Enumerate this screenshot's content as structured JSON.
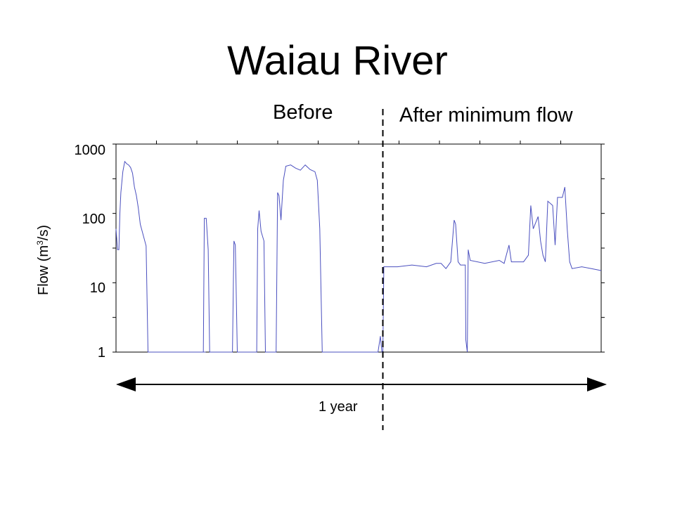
{
  "title": "Waiau River",
  "chart_data": {
    "type": "line",
    "title": "Waiau River",
    "ylabel_prefix": "Flow (m",
    "ylabel_sup": "3",
    "ylabel_suffix": "/s)",
    "yscale": "log",
    "ylim": [
      1,
      1000
    ],
    "yticks": [
      {
        "value": 1,
        "label": "1"
      },
      {
        "value": 10,
        "label": "10"
      },
      {
        "value": 100,
        "label": "100"
      },
      {
        "value": 1000,
        "label": "1000"
      }
    ],
    "x_span_label": "1 year",
    "period_labels": {
      "before": "Before",
      "after": "After minimum flow"
    },
    "xlim": [
      0,
      1
    ],
    "divider_x": 0.55,
    "grid": false,
    "series": [
      {
        "color": "#4a4fbf",
        "points": [
          [
            0.0,
            60
          ],
          [
            0.003,
            30
          ],
          [
            0.006,
            30
          ],
          [
            0.008,
            100
          ],
          [
            0.01,
            200
          ],
          [
            0.014,
            400
          ],
          [
            0.018,
            560
          ],
          [
            0.022,
            520
          ],
          [
            0.026,
            500
          ],
          [
            0.03,
            460
          ],
          [
            0.034,
            380
          ],
          [
            0.038,
            240
          ],
          [
            0.042,
            180
          ],
          [
            0.046,
            120
          ],
          [
            0.05,
            70
          ],
          [
            0.062,
            34
          ],
          [
            0.066,
            1
          ],
          [
            0.185,
            1
          ],
          [
            0.18,
            1
          ],
          [
            0.182,
            85
          ],
          [
            0.186,
            85
          ],
          [
            0.19,
            30
          ],
          [
            0.193,
            1
          ],
          [
            0.24,
            1
          ],
          [
            0.243,
            40
          ],
          [
            0.246,
            35
          ],
          [
            0.25,
            1
          ],
          [
            0.29,
            1
          ],
          [
            0.292,
            60
          ],
          [
            0.295,
            110
          ],
          [
            0.299,
            55
          ],
          [
            0.305,
            40
          ],
          [
            0.308,
            1
          ],
          [
            0.33,
            1
          ],
          [
            0.333,
            200
          ],
          [
            0.336,
            180
          ],
          [
            0.34,
            80
          ],
          [
            0.345,
            300
          ],
          [
            0.35,
            480
          ],
          [
            0.36,
            500
          ],
          [
            0.37,
            450
          ],
          [
            0.38,
            420
          ],
          [
            0.39,
            500
          ],
          [
            0.4,
            430
          ],
          [
            0.41,
            400
          ],
          [
            0.415,
            300
          ],
          [
            0.42,
            60
          ],
          [
            0.425,
            1
          ],
          [
            0.54,
            1
          ],
          [
            0.545,
            1.7
          ],
          [
            0.548,
            1
          ],
          [
            0.55,
            1
          ],
          [
            0.552,
            17
          ],
          [
            0.58,
            17
          ],
          [
            0.61,
            18
          ],
          [
            0.64,
            17
          ],
          [
            0.66,
            19
          ],
          [
            0.67,
            19
          ],
          [
            0.68,
            16
          ],
          [
            0.69,
            20
          ],
          [
            0.697,
            80
          ],
          [
            0.7,
            70
          ],
          [
            0.705,
            20
          ],
          [
            0.71,
            18
          ],
          [
            0.72,
            18
          ],
          [
            0.721,
            1.5
          ],
          [
            0.724,
            1
          ],
          [
            0.726,
            30
          ],
          [
            0.73,
            21
          ],
          [
            0.76,
            19
          ],
          [
            0.79,
            21
          ],
          [
            0.8,
            19
          ],
          [
            0.81,
            35
          ],
          [
            0.815,
            20
          ],
          [
            0.84,
            20
          ],
          [
            0.85,
            25
          ],
          [
            0.855,
            130
          ],
          [
            0.86,
            60
          ],
          [
            0.87,
            90
          ],
          [
            0.875,
            40
          ],
          [
            0.88,
            25
          ],
          [
            0.885,
            20
          ],
          [
            0.89,
            150
          ],
          [
            0.9,
            130
          ],
          [
            0.905,
            35
          ],
          [
            0.91,
            170
          ],
          [
            0.92,
            170
          ],
          [
            0.925,
            240
          ],
          [
            0.93,
            60
          ],
          [
            0.935,
            20
          ],
          [
            0.94,
            16
          ],
          [
            0.96,
            17
          ],
          [
            0.98,
            16
          ],
          [
            1.0,
            15
          ]
        ]
      }
    ]
  }
}
